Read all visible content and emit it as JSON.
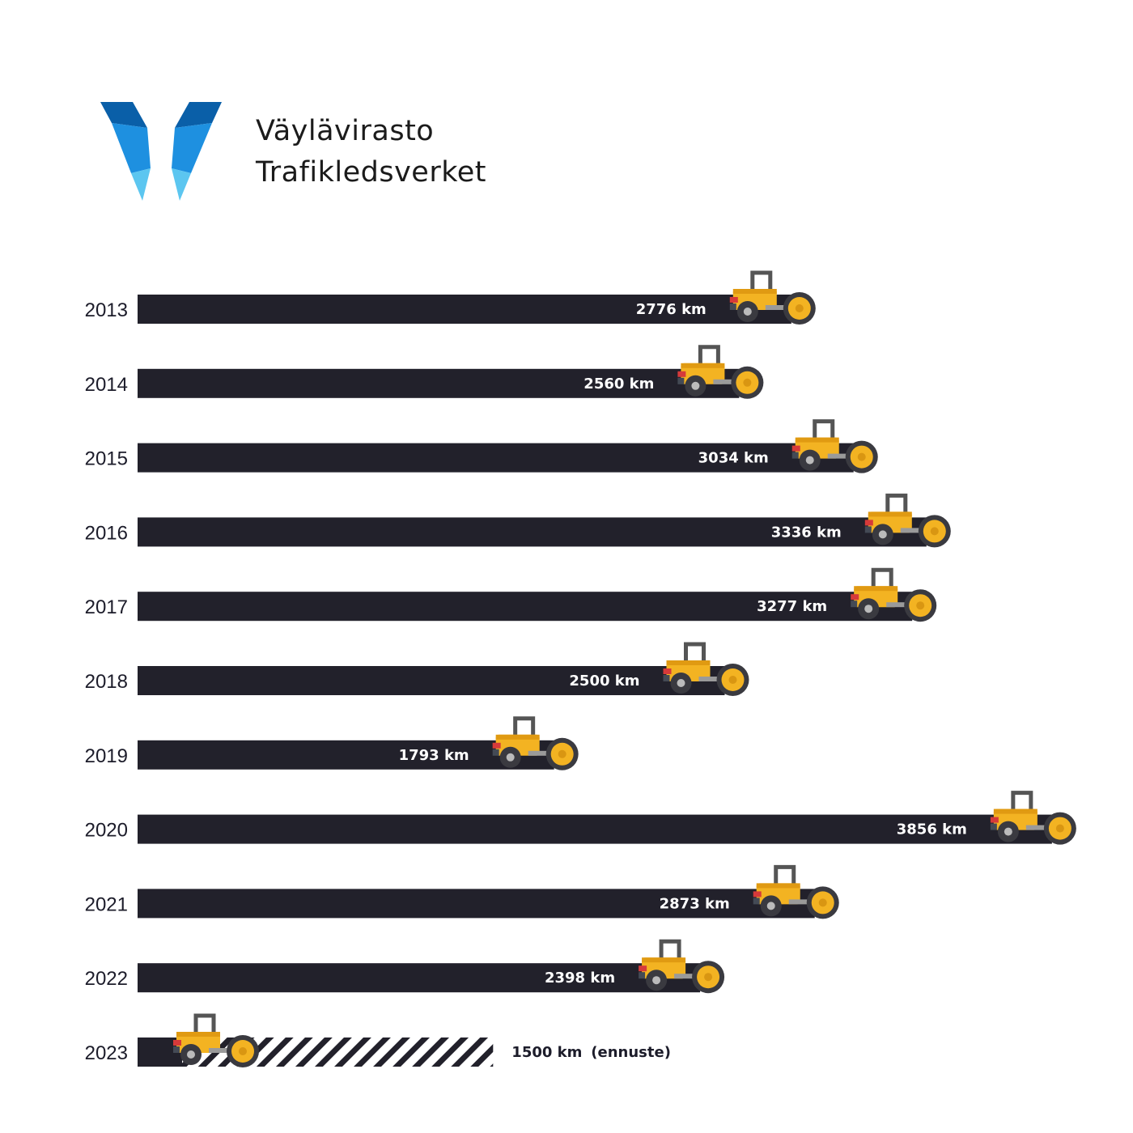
{
  "organization": {
    "name_fi": "Väylävirasto",
    "name_sv": "Trafikledsverket"
  },
  "colors": {
    "bar": "#22212b",
    "roller_yellow": "#f3b322",
    "roller_gray": "#555555",
    "logo_dark": "#0a5fa8",
    "logo_mid": "#1e90e0",
    "logo_light": "#5cc6f0"
  },
  "icons": {
    "logo": "vaylavirasto-v-logo-icon",
    "vehicle": "road-roller-icon"
  },
  "chart_data": {
    "type": "bar",
    "orientation": "horizontal",
    "unit": "km",
    "categories": [
      "2013",
      "2014",
      "2015",
      "2016",
      "2017",
      "2018",
      "2019",
      "2020",
      "2021",
      "2022",
      "2023"
    ],
    "values": [
      2776,
      2560,
      3034,
      3336,
      3277,
      2500,
      1793,
      3856,
      2873,
      2398,
      1500
    ],
    "labels": [
      "2776 km",
      "2560 km",
      "3034 km",
      "3336 km",
      "3277 km",
      "2500 km",
      "1793 km",
      "3856 km",
      "2873 km",
      "2398 km",
      "1500 km"
    ],
    "forecast": [
      false,
      false,
      false,
      false,
      false,
      false,
      false,
      false,
      false,
      false,
      true
    ],
    "forecast_note": "(ennuste)",
    "title": "",
    "xlabel": "",
    "ylabel": "",
    "grid": false,
    "legend": "none"
  }
}
